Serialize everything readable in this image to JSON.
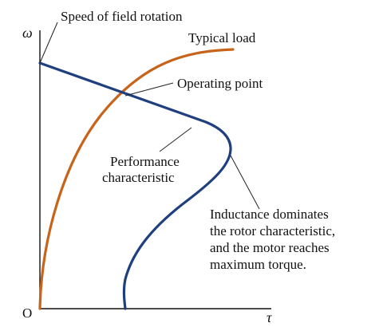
{
  "axes": {
    "y_symbol": "ω",
    "x_symbol": "τ",
    "origin": "O"
  },
  "labels": {
    "speed_of_field_rotation": "Speed of field rotation",
    "typical_load": "Typical load",
    "operating_point": "Operating point",
    "performance_line1": "Performance",
    "performance_line2": "characteristic",
    "inductance_line1": "Inductance dominates",
    "inductance_line2": "the rotor characteristic,",
    "inductance_line3": "and the motor reaches",
    "inductance_line4": "maximum torque."
  },
  "colors": {
    "performance_curve": "#1f3f7f",
    "load_curve": "#c8641a",
    "axis": "#111111"
  }
}
